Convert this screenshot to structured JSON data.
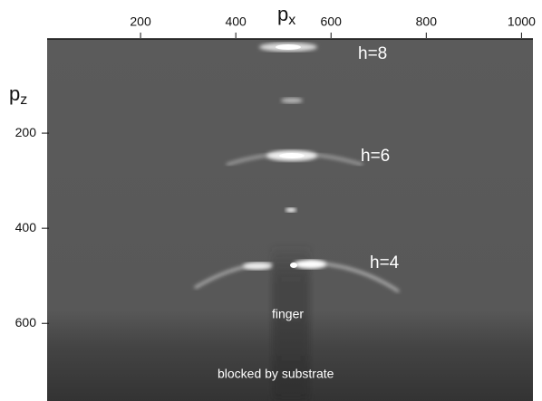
{
  "chart_data": {
    "type": "image",
    "x_label": {
      "main": "p",
      "sub": "x"
    },
    "y_label": {
      "main": "p",
      "sub": "z"
    },
    "xlim": [
      0,
      1024
    ],
    "xticks": [
      200,
      400,
      600,
      800,
      1000
    ],
    "ylim": [
      0,
      764
    ],
    "yticks": [
      200,
      400,
      600
    ],
    "annotations": [
      "h=8",
      "h=6",
      "h=4",
      "finger",
      "blocked by substrate"
    ]
  }
}
